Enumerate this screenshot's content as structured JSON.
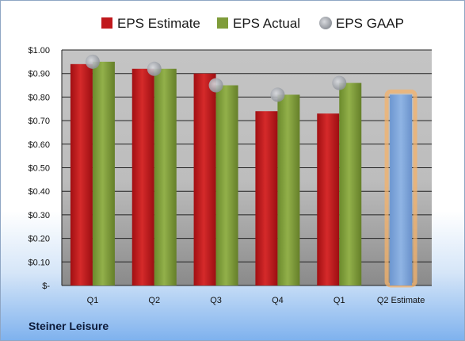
{
  "company": "Steiner Leisure",
  "chart_data": {
    "type": "bar",
    "categories": [
      "Q1",
      "Q2",
      "Q3",
      "Q4",
      "Q1",
      "Q2 Estimate"
    ],
    "series": [
      {
        "name": "EPS Estimate",
        "values": [
          0.94,
          0.92,
          0.9,
          0.74,
          0.73,
          null
        ],
        "color": "#c0181c"
      },
      {
        "name": "EPS Actual",
        "values": [
          0.95,
          0.92,
          0.85,
          0.81,
          0.86,
          null
        ],
        "color": "#7f9c3a"
      },
      {
        "name": "EPS GAAP",
        "values": [
          0.95,
          0.92,
          0.85,
          0.81,
          0.86,
          null
        ],
        "color": "#b0b4bc",
        "style": "marker"
      }
    ],
    "forecast": {
      "category": "Q2 Estimate",
      "value": 0.81,
      "color": "#7aa3d8",
      "highlight": "#f4b26a"
    },
    "ylim": [
      0,
      1.0
    ],
    "yticks": [
      "$-",
      "$0.10",
      "$0.20",
      "$0.30",
      "$0.40",
      "$0.50",
      "$0.60",
      "$0.70",
      "$0.80",
      "$0.90",
      "$1.00"
    ],
    "legend": "top",
    "grid": true,
    "title": "",
    "xlabel": "",
    "ylabel": ""
  }
}
